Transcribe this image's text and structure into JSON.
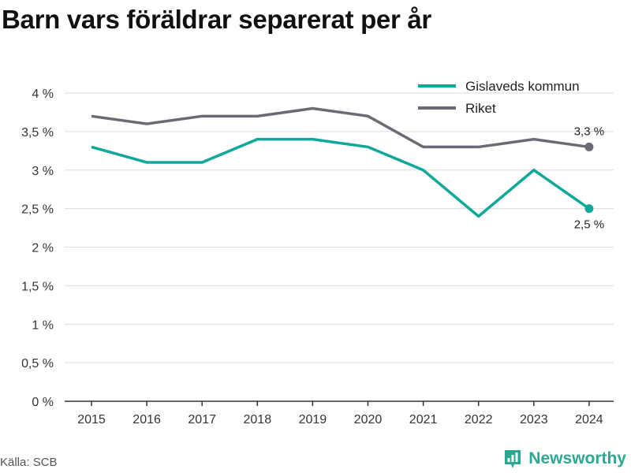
{
  "title": "Barn vars föräldrar separerat per år",
  "source": "Källa: SCB",
  "brand": "Newsworthy",
  "colors": {
    "gislaved": "#0ea89a",
    "riket": "#6b6b73",
    "grid": "#dddddd",
    "brand": "#2aa891"
  },
  "chart_data": {
    "type": "line",
    "x": [
      "2015",
      "2016",
      "2017",
      "2018",
      "2019",
      "2020",
      "2021",
      "2022",
      "2023",
      "2024"
    ],
    "y_ticks": [
      "0 %",
      "0,5 %",
      "1 %",
      "1,5 %",
      "2 %",
      "2,5 %",
      "3 %",
      "3,5 %",
      "4 %"
    ],
    "ylim": [
      0,
      4
    ],
    "grid": true,
    "legend_position": "top-right",
    "series": [
      {
        "name": "Gislaveds kommun",
        "values": [
          3.3,
          3.1,
          3.1,
          3.4,
          3.4,
          3.3,
          3.0,
          2.4,
          3.0,
          2.5
        ],
        "end_label": "2,5 %"
      },
      {
        "name": "Riket",
        "values": [
          3.7,
          3.6,
          3.7,
          3.7,
          3.8,
          3.7,
          3.3,
          3.3,
          3.4,
          3.3
        ],
        "end_label": "3,3 %"
      }
    ]
  }
}
